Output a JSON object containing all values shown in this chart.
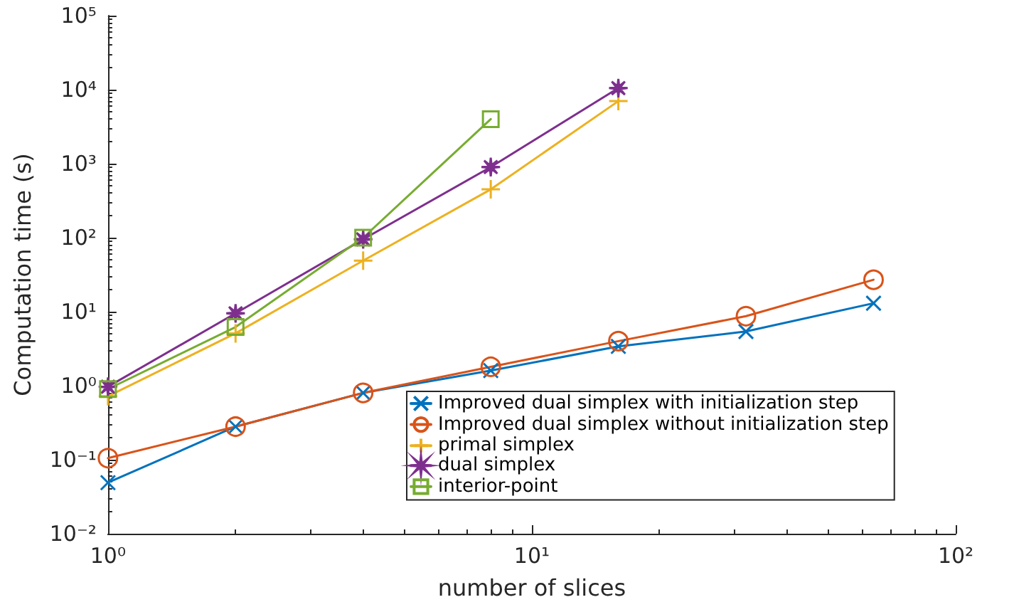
{
  "chart_data": {
    "type": "line",
    "xlabel": "number of slices",
    "ylabel": "Computation time (s)",
    "log": "xy",
    "grid": false,
    "legend": "bottom right",
    "line_style": "solid",
    "xlim": [
      1,
      100
    ],
    "xticks": [
      {
        "value": 1,
        "label": "10⁰"
      },
      {
        "value": 10,
        "label": "10¹"
      },
      {
        "value": 100,
        "label": "10²"
      }
    ],
    "ylim": [
      0.01,
      100000
    ],
    "yticks": [
      {
        "value": 0.01,
        "label": "10⁻²"
      },
      {
        "value": 0.1,
        "label": "10⁻¹"
      },
      {
        "value": 1,
        "label": "10⁰"
      },
      {
        "value": 10,
        "label": "10¹"
      },
      {
        "value": 100,
        "label": "10²"
      },
      {
        "value": 1000,
        "label": "10³"
      },
      {
        "value": 10000,
        "label": "10⁴"
      },
      {
        "value": 100000,
        "label": "10⁵"
      }
    ],
    "series": [
      {
        "name": "Improved dual simplex with initialization step",
        "color": "#0072bd",
        "marker": "cross",
        "x": [
          1,
          2,
          4,
          8,
          16,
          32,
          64
        ],
        "values": [
          0.049,
          0.28,
          0.8,
          1.6,
          3.4,
          5.4,
          13
        ]
      },
      {
        "name": "Improved dual simplex without initialization step",
        "color": "#d95319",
        "marker": "circle",
        "x": [
          1,
          2,
          4,
          8,
          16,
          32,
          64
        ],
        "values": [
          0.105,
          0.28,
          0.8,
          1.8,
          4,
          8.7,
          27
        ]
      },
      {
        "name": "primal simplex",
        "color": "#edb120",
        "marker": "plus",
        "x": [
          1,
          2,
          4,
          8,
          16
        ],
        "values": [
          0.72,
          5.1,
          49,
          450,
          7000
        ]
      },
      {
        "name": "dual simplex",
        "color": "#7e2f8e",
        "marker": "star",
        "x": [
          1,
          2,
          4,
          8,
          16
        ],
        "values": [
          0.97,
          9.5,
          95,
          900,
          10500
        ]
      },
      {
        "name": "interior-point",
        "color": "#77ac30",
        "marker": "square",
        "x": [
          1,
          2,
          4,
          8
        ],
        "values": [
          0.9,
          6.2,
          100,
          4000
        ]
      }
    ]
  }
}
